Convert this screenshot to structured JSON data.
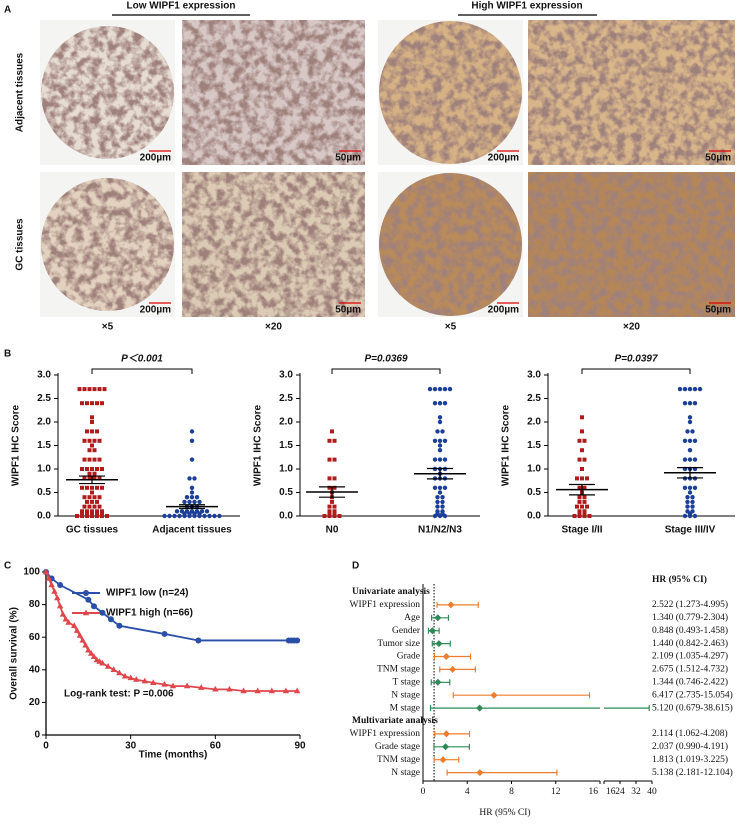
{
  "panel_a": {
    "label": "A",
    "headers": [
      "Low WIPF1 expression",
      "High WIPF1 expression"
    ],
    "rows": [
      "Adjacent tissues",
      "GC tissues"
    ],
    "scale_bars": [
      "200µm",
      "50µm"
    ],
    "magnifications": [
      "×5",
      "×20"
    ]
  },
  "chart_data": [
    {
      "type": "dot_plot",
      "panel": "B",
      "ylabel": "WIPF1 IHC Score",
      "categories": [
        "GC tissues",
        "Adjacent tissues"
      ],
      "colors": [
        "#b01c1c",
        "#1c3f9a"
      ],
      "points": [
        [
          2.7,
          2.7,
          2.7,
          2.7,
          2.7,
          2.7,
          2.4,
          2.4,
          2.4,
          2.4,
          2.4,
          2.1,
          2.0,
          1.8,
          1.8,
          1.8,
          1.6,
          1.6,
          1.6,
          1.6,
          1.5,
          1.4,
          1.4,
          1.2,
          1.2,
          1.2,
          1.2,
          1.0,
          1.0,
          1.0,
          1.0,
          1.0,
          0.9,
          0.9,
          0.8,
          0.8,
          0.8,
          0.8,
          0.6,
          0.6,
          0.6,
          0.6,
          0.6,
          0.5,
          0.4,
          0.4,
          0.4,
          0.4,
          0.3,
          0.3,
          0.3,
          0.2,
          0.2,
          0.2,
          0.2,
          0.1,
          0.1,
          0.1,
          0.1,
          0.1,
          0.05,
          0.05,
          0.05,
          0.05,
          0.05,
          0,
          0,
          0,
          0,
          0,
          0,
          0
        ],
        [
          1.8,
          1.6,
          1.2,
          0.8,
          0.8,
          0.6,
          0.5,
          0.4,
          0.4,
          0.4,
          0.3,
          0.3,
          0.3,
          0.3,
          0.2,
          0.2,
          0.2,
          0.1,
          0.1,
          0.1,
          0.1,
          0.1,
          0.1,
          0.1,
          0.05,
          0.05,
          0.05,
          0.05,
          0,
          0,
          0,
          0,
          0,
          0,
          0,
          0,
          0,
          0,
          0,
          0
        ]
      ],
      "mean": [
        0.77,
        0.2
      ],
      "sem": [
        0.08,
        0.04
      ],
      "annotation": "P＜0.001",
      "ylim": [
        0,
        3
      ],
      "yticks": [
        {
          "value": 0,
          "label": "0.0"
        },
        {
          "value": 0.5,
          "label": "0.5"
        },
        {
          "value": 1,
          "label": "1.0"
        },
        {
          "value": 1.5,
          "label": "1.5"
        },
        {
          "value": 2,
          "label": "2.0"
        },
        {
          "value": 2.5,
          "label": "2.5"
        },
        {
          "value": 3,
          "label": "3.0"
        }
      ]
    },
    {
      "type": "dot_plot",
      "ylabel": "WIPF1 IHC Score",
      "categories": [
        "N0",
        "N1/N2/N3"
      ],
      "colors": [
        "#b01c1c",
        "#1c3f9a"
      ],
      "points": [
        [
          1.8,
          1.6,
          1.6,
          1.2,
          1.2,
          0.8,
          0.8,
          0.6,
          0.6,
          0.5,
          0.4,
          0.3,
          0.2,
          0.2,
          0.1,
          0.1,
          0.05,
          0.05,
          0,
          0,
          0,
          0
        ],
        [
          2.7,
          2.7,
          2.7,
          2.7,
          2.7,
          2.4,
          2.4,
          2.4,
          2.1,
          2.0,
          1.8,
          1.8,
          1.6,
          1.6,
          1.6,
          1.5,
          1.4,
          1.2,
          1.2,
          1.2,
          1.0,
          1.0,
          1.0,
          0.9,
          0.8,
          0.8,
          0.8,
          0.6,
          0.6,
          0.6,
          0.5,
          0.4,
          0.4,
          0.3,
          0.3,
          0.2,
          0.2,
          0.1,
          0.1,
          0.05,
          0.05,
          0,
          0,
          0
        ]
      ],
      "mean": [
        0.51,
        0.9
      ],
      "sem": [
        0.11,
        0.11
      ],
      "annotation": "P=0.0369",
      "ylim": [
        0,
        3
      ],
      "yticks": [
        {
          "value": 0,
          "label": "0.0"
        },
        {
          "value": 0.5,
          "label": "0.5"
        },
        {
          "value": 1,
          "label": "1.0"
        },
        {
          "value": 1.5,
          "label": "1.5"
        },
        {
          "value": 2,
          "label": "2.0"
        },
        {
          "value": 2.5,
          "label": "2.5"
        },
        {
          "value": 3,
          "label": "3.0"
        }
      ]
    },
    {
      "type": "dot_plot",
      "ylabel": "WIPF1 IHC Score",
      "categories": [
        "Stage I/II",
        "Stage III/IV"
      ],
      "colors": [
        "#b01c1c",
        "#1c3f9a"
      ],
      "points": [
        [
          2.1,
          1.8,
          1.6,
          1.6,
          1.4,
          1.2,
          1.2,
          1.0,
          0.8,
          0.8,
          0.8,
          0.6,
          0.6,
          0.5,
          0.4,
          0.4,
          0.3,
          0.3,
          0.2,
          0.2,
          0.2,
          0.1,
          0.1,
          0.05,
          0.05,
          0,
          0,
          0,
          0
        ],
        [
          2.7,
          2.7,
          2.7,
          2.7,
          2.7,
          2.4,
          2.4,
          2.4,
          2.1,
          2.0,
          1.8,
          1.8,
          1.6,
          1.6,
          1.6,
          1.4,
          1.2,
          1.2,
          1.2,
          1.0,
          1.0,
          1.0,
          0.8,
          0.8,
          0.8,
          0.6,
          0.6,
          0.6,
          0.5,
          0.4,
          0.4,
          0.3,
          0.3,
          0.2,
          0.2,
          0.1,
          0.1,
          0.05,
          0,
          0,
          0
        ]
      ],
      "mean": [
        0.56,
        0.92
      ],
      "sem": [
        0.11,
        0.11
      ],
      "annotation": "P=0.0397",
      "ylim": [
        0,
        3
      ],
      "yticks": [
        {
          "value": 0,
          "label": "0.0"
        },
        {
          "value": 0.5,
          "label": "0.5"
        },
        {
          "value": 1,
          "label": "1.0"
        },
        {
          "value": 1.5,
          "label": "1.5"
        },
        {
          "value": 2,
          "label": "2.0"
        },
        {
          "value": 2.5,
          "label": "2.5"
        },
        {
          "value": 3,
          "label": "3.0"
        }
      ]
    },
    {
      "type": "km",
      "panel": "C",
      "xlabel": "Time (months)",
      "ylabel": "Overall survival (%)",
      "annotation": "Log-rank test: P =0.006",
      "legend": "upper right",
      "xlim": [
        0,
        90
      ],
      "xticks": [
        0,
        30,
        60,
        90
      ],
      "ylim": [
        0,
        100
      ],
      "yticks": [
        0,
        20,
        40,
        60,
        80,
        100
      ],
      "series": [
        {
          "name": "WIPF1 low (n=24)",
          "color": "#2a4fa8",
          "marker": "circle",
          "x": [
            0,
            2,
            5,
            15,
            17,
            20,
            23,
            26,
            42,
            54,
            86,
            87,
            88,
            89
          ],
          "values": [
            100,
            96,
            92,
            83,
            79,
            75,
            71,
            67,
            62,
            58,
            58,
            58,
            58,
            58
          ]
        },
        {
          "name": "WIPF1 high (n=66)",
          "color": "#e0474c",
          "marker": "triangle",
          "x": [
            0,
            1,
            2,
            3,
            4,
            5,
            6,
            7,
            8,
            10,
            11,
            12,
            13,
            14,
            15,
            16,
            17,
            18,
            19,
            20,
            22,
            24,
            26,
            28,
            30,
            32,
            35,
            38,
            42,
            45,
            50,
            55,
            60,
            65,
            70,
            75,
            80,
            85,
            89
          ],
          "values": [
            100,
            96,
            92,
            88,
            84,
            79,
            74,
            71,
            69,
            67,
            64,
            61,
            58,
            55,
            52,
            50,
            48,
            46,
            45,
            44,
            42,
            40,
            38,
            36,
            35,
            34,
            33,
            32,
            31,
            30,
            30,
            29,
            28,
            28,
            27,
            27,
            27,
            27,
            27
          ]
        }
      ]
    },
    {
      "type": "forest",
      "panel": "D",
      "header": "HR (95% CI)",
      "xlabel": "HR (95% CI)",
      "xlim": [
        0,
        16
      ],
      "xticks": [
        0,
        4,
        8,
        12,
        16
      ],
      "xlim_right": [
        16,
        40
      ],
      "xticks_right": [
        16,
        24,
        32,
        40
      ],
      "reference": 1,
      "rows": [
        {
          "label": "Univariate analysis"
        },
        {
          "label": "WIPF1 expression",
          "hr": 2.522,
          "lo": 1.273,
          "hi": 4.995,
          "text": "2.522 (1.273-4.995)",
          "color": "#ef7d2d"
        },
        {
          "label": "Age",
          "hr": 1.34,
          "lo": 0.779,
          "hi": 2.304,
          "text": "1.340 (0.779-2.304)",
          "color": "#2e8b57"
        },
        {
          "label": "Gender",
          "hr": 0.848,
          "lo": 0.493,
          "hi": 1.458,
          "text": "0.848 (0.493-1.458)",
          "color": "#2e8b57"
        },
        {
          "label": "Tumor size",
          "hr": 1.44,
          "lo": 0.842,
          "hi": 2.463,
          "text": "1.440 (0.842-2.463)",
          "color": "#2e8b57"
        },
        {
          "label": "Grade",
          "hr": 2.109,
          "lo": 1.035,
          "hi": 4.297,
          "text": "2.109 (1.035-4.297)",
          "color": "#ef7d2d"
        },
        {
          "label": "TNM stage",
          "hr": 2.675,
          "lo": 1.512,
          "hi": 4.732,
          "text": "2.675 (1.512-4.732)",
          "color": "#ef7d2d"
        },
        {
          "label": "T stage",
          "hr": 1.344,
          "lo": 0.746,
          "hi": 2.422,
          "text": "1.344 (0.746-2.422)",
          "color": "#2e8b57"
        },
        {
          "label": "N stage",
          "hr": 6.417,
          "lo": 2.735,
          "hi": 15.054,
          "text": "6.417 (2.735-15.054)",
          "color": "#ef7d2d"
        },
        {
          "label": "M stage",
          "hr": 5.12,
          "lo": 0.679,
          "hi": 38.615,
          "text": "5.120 (0.679-38.615)",
          "color": "#2e8b57"
        },
        {
          "label": "Multivariate analysis"
        },
        {
          "label": "WIPF1 expression",
          "hr": 2.114,
          "lo": 1.062,
          "hi": 4.208,
          "text": "2.114 (1.062-4.208)",
          "color": "#ef7d2d"
        },
        {
          "label": "Grade stage",
          "hr": 2.037,
          "lo": 0.99,
          "hi": 4.191,
          "text": "2.037 (0.990-4.191)",
          "color": "#2e8b57"
        },
        {
          "label": "TNM stage",
          "hr": 1.813,
          "lo": 1.019,
          "hi": 3.225,
          "text": "1.813 (1.019-3.225)",
          "color": "#ef7d2d"
        },
        {
          "label": "N stage",
          "hr": 5.138,
          "lo": 2.181,
          "hi": 12.104,
          "text": "5.138 (2.181-12.104)",
          "color": "#ef7d2d"
        }
      ]
    }
  ]
}
